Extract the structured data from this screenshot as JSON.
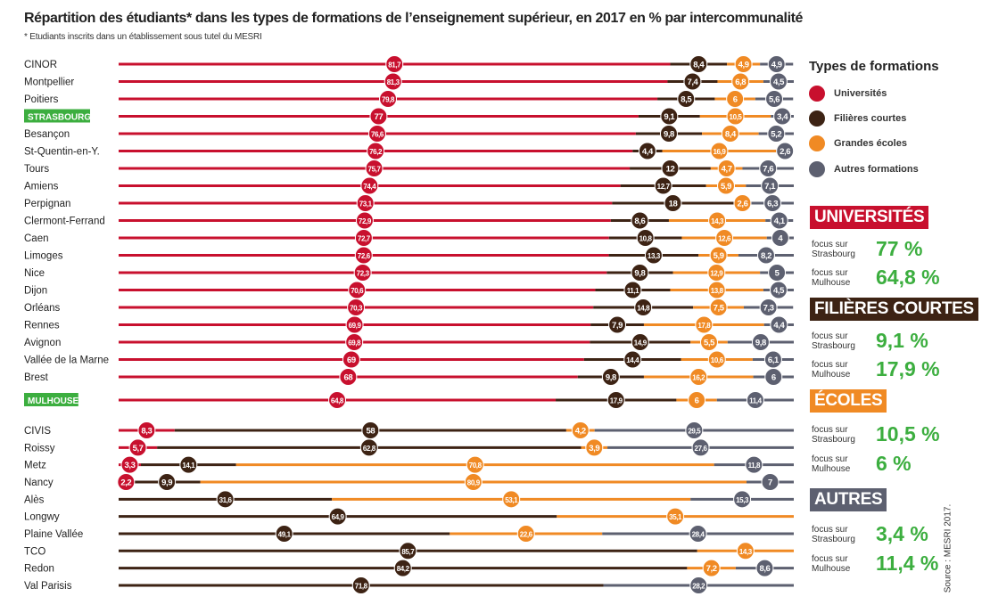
{
  "title": "Répartition des étudiants* dans les types de formations de l’enseignement supérieur, en 2017 en % par intercommunalité",
  "subtitle": "* Etudiants inscrits dans un établissement sous tutel du MESRI",
  "source": "Source : MESRI 2017.",
  "colors": {
    "universites": "#c8102e",
    "filieres": "#3d2314",
    "ecoles": "#f08a24",
    "autres": "#5d6070",
    "highlight": "#3cae3f"
  },
  "legend": {
    "title": "Types de formations",
    "items": [
      {
        "label": "Universités",
        "color": "#c8102e"
      },
      {
        "label": "Filières courtes",
        "color": "#3d2314"
      },
      {
        "label": "Grandes écoles",
        "color": "#f08a24"
      },
      {
        "label": "Autres formations",
        "color": "#5d6070"
      }
    ]
  },
  "focus": [
    {
      "heading": "UNIVERSITÉS",
      "color": "#c8102e",
      "strasbourg_label": "focus sur Strasbourg",
      "strasbourg": "77 %",
      "mulhouse_label": "focus sur Mulhouse",
      "mulhouse": "64,8 %"
    },
    {
      "heading": "FILIÈRES COURTES",
      "color": "#3d2314",
      "strasbourg_label": "focus sur Strasbourg",
      "strasbourg": "9,1 %",
      "mulhouse_label": "focus sur Mulhouse",
      "mulhouse": "17,9 %"
    },
    {
      "heading": "ÉCOLES",
      "color": "#f08a24",
      "strasbourg_label": "focus sur Strasbourg",
      "strasbourg": "10,5 %",
      "mulhouse_label": "focus sur Mulhouse",
      "mulhouse": "6 %"
    },
    {
      "heading": "AUTRES",
      "color": "#5d6070",
      "strasbourg_label": "focus sur Strasbourg",
      "strasbourg": "3,4 %",
      "mulhouse_label": "focus sur Mulhouse",
      "mulhouse": "11,4 %"
    }
  ],
  "chart_data": {
    "type": "bar",
    "stacked": true,
    "orientation": "horizontal",
    "unit": "%",
    "xlim": [
      0,
      100
    ],
    "series_names": [
      "Universités",
      "Filières courtes",
      "Grandes écoles",
      "Autres formations"
    ],
    "rows": [
      {
        "name": "CINOR",
        "values": [
          81.7,
          8.4,
          4.9,
          4.9
        ]
      },
      {
        "name": "Montpellier",
        "values": [
          81.3,
          7.4,
          6.8,
          4.5
        ]
      },
      {
        "name": "Poitiers",
        "values": [
          79.8,
          8.5,
          6,
          5.6
        ]
      },
      {
        "name": "STRASBOURG",
        "values": [
          77,
          9.1,
          10.5,
          3.4
        ],
        "highlight": true
      },
      {
        "name": "Besançon",
        "values": [
          76.6,
          9.8,
          8.4,
          5.2
        ]
      },
      {
        "name": "St-Quentin-en-Y.",
        "values": [
          76.2,
          4.4,
          16.9,
          2.6
        ]
      },
      {
        "name": "Tours",
        "values": [
          75.7,
          12,
          4.7,
          7.6
        ]
      },
      {
        "name": "Amiens",
        "values": [
          74.4,
          12.7,
          5.9,
          7.1
        ]
      },
      {
        "name": "Perpignan",
        "values": [
          73.1,
          18,
          2.6,
          6.3
        ]
      },
      {
        "name": "Clermont-Ferrand",
        "values": [
          72.9,
          8.6,
          14.3,
          4.1
        ]
      },
      {
        "name": "Caen",
        "values": [
          72.7,
          10.8,
          12.6,
          4
        ]
      },
      {
        "name": "Limoges",
        "values": [
          72.6,
          13.3,
          5.9,
          8.2
        ]
      },
      {
        "name": "Nice",
        "values": [
          72.3,
          9.8,
          12.9,
          5
        ]
      },
      {
        "name": "Dijon",
        "values": [
          70.6,
          11.1,
          13.8,
          4.5
        ]
      },
      {
        "name": "Orléans",
        "values": [
          70.3,
          14.8,
          7.5,
          7.3
        ]
      },
      {
        "name": "Rennes",
        "values": [
          69.9,
          7.9,
          17.8,
          4.4
        ]
      },
      {
        "name": "Avignon",
        "values": [
          69.8,
          14.9,
          5.5,
          9.8
        ]
      },
      {
        "name": "Vallée de la Marne",
        "values": [
          69,
          14.4,
          10.6,
          6.1
        ]
      },
      {
        "name": "Brest",
        "values": [
          68,
          9.8,
          16.2,
          6
        ]
      },
      {
        "name": "MULHOUSE",
        "values": [
          64.8,
          17.9,
          6,
          11.4
        ],
        "highlight": true
      },
      {
        "name": "CIVIS",
        "values": [
          8.3,
          58,
          4.2,
          29.5
        ]
      },
      {
        "name": "Roissy",
        "values": [
          5.7,
          62.8,
          3.9,
          27.6
        ]
      },
      {
        "name": "Metz",
        "values": [
          3.3,
          14.1,
          70.8,
          11.8
        ]
      },
      {
        "name": "Nancy",
        "values": [
          2.2,
          9.9,
          80.9,
          7
        ]
      },
      {
        "name": "Alès",
        "values": [
          null,
          31.6,
          53.1,
          15.3
        ]
      },
      {
        "name": "Longwy",
        "values": [
          null,
          64.9,
          35.1,
          null
        ]
      },
      {
        "name": "Plaine Vallée",
        "values": [
          null,
          49.1,
          22.6,
          28.4
        ]
      },
      {
        "name": "TCO",
        "values": [
          null,
          85.7,
          14.3,
          null
        ]
      },
      {
        "name": "Redon",
        "values": [
          null,
          84.2,
          7.2,
          8.6
        ]
      },
      {
        "name": "Val Parisis",
        "values": [
          null,
          71.8,
          null,
          28.2
        ]
      }
    ]
  }
}
